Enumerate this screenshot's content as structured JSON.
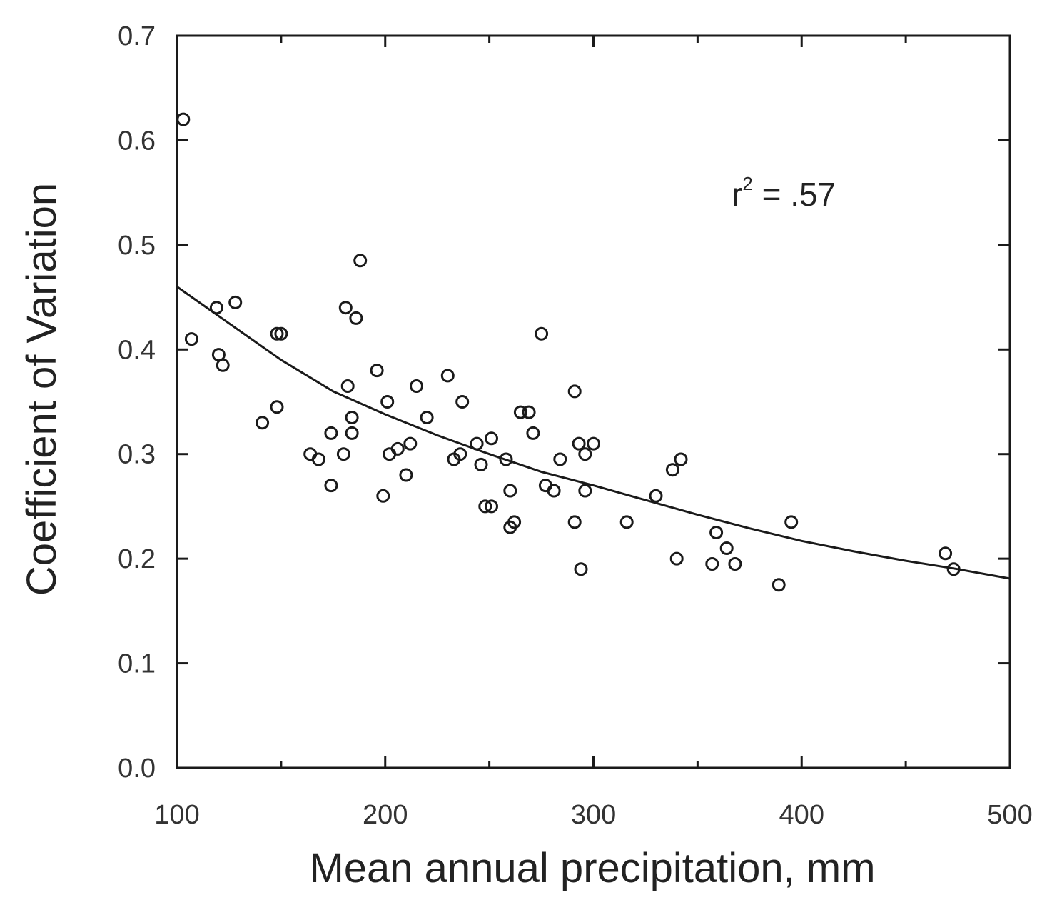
{
  "chart_data": {
    "type": "scatter",
    "title": "",
    "xlabel": "Mean annual precipitation, mm",
    "ylabel": "Coefficient of Variation",
    "xlim": [
      100,
      500
    ],
    "ylim": [
      0.0,
      0.7
    ],
    "grid": false,
    "x_ticks": [
      100,
      200,
      300,
      400,
      500
    ],
    "x_tick_labels": [
      "100",
      "200",
      "300",
      "400",
      "500"
    ],
    "y_ticks": [
      0.0,
      0.1,
      0.2,
      0.3,
      0.4,
      0.5,
      0.6,
      0.7
    ],
    "y_tick_labels": [
      "0.0",
      "0.1",
      "0.2",
      "0.3",
      "0.4",
      "0.5",
      "0.6",
      "0.7"
    ],
    "annotation": {
      "text": "r",
      "superscript": "2",
      "value": " = .57"
    },
    "fit_curve": {
      "x": [
        100,
        125,
        150,
        175,
        200,
        225,
        250,
        275,
        300,
        325,
        350,
        375,
        400,
        425,
        450,
        475,
        500
      ],
      "y": [
        0.46,
        0.425,
        0.39,
        0.36,
        0.338,
        0.318,
        0.3,
        0.283,
        0.27,
        0.256,
        0.242,
        0.229,
        0.217,
        0.207,
        0.198,
        0.19,
        0.181
      ]
    },
    "points": [
      [
        103,
        0.62
      ],
      [
        107,
        0.41
      ],
      [
        119,
        0.44
      ],
      [
        120,
        0.395
      ],
      [
        122,
        0.385
      ],
      [
        128,
        0.445
      ],
      [
        141,
        0.33
      ],
      [
        148,
        0.345
      ],
      [
        148,
        0.415
      ],
      [
        150,
        0.415
      ],
      [
        164,
        0.3
      ],
      [
        168,
        0.295
      ],
      [
        174,
        0.32
      ],
      [
        174,
        0.27
      ],
      [
        180,
        0.3
      ],
      [
        181,
        0.44
      ],
      [
        182,
        0.365
      ],
      [
        184,
        0.335
      ],
      [
        184,
        0.32
      ],
      [
        186,
        0.43
      ],
      [
        188,
        0.485
      ],
      [
        196,
        0.38
      ],
      [
        199,
        0.26
      ],
      [
        201,
        0.35
      ],
      [
        202,
        0.3
      ],
      [
        206,
        0.305
      ],
      [
        210,
        0.28
      ],
      [
        212,
        0.31
      ],
      [
        215,
        0.365
      ],
      [
        220,
        0.335
      ],
      [
        230,
        0.375
      ],
      [
        233,
        0.295
      ],
      [
        236,
        0.3
      ],
      [
        237,
        0.35
      ],
      [
        244,
        0.31
      ],
      [
        246,
        0.29
      ],
      [
        248,
        0.25
      ],
      [
        251,
        0.315
      ],
      [
        251,
        0.25
      ],
      [
        258,
        0.295
      ],
      [
        260,
        0.265
      ],
      [
        260,
        0.23
      ],
      [
        262,
        0.235
      ],
      [
        265,
        0.34
      ],
      [
        269,
        0.34
      ],
      [
        271,
        0.32
      ],
      [
        275,
        0.415
      ],
      [
        277,
        0.27
      ],
      [
        281,
        0.265
      ],
      [
        284,
        0.295
      ],
      [
        291,
        0.36
      ],
      [
        291,
        0.235
      ],
      [
        293,
        0.31
      ],
      [
        294,
        0.19
      ],
      [
        296,
        0.3
      ],
      [
        296,
        0.265
      ],
      [
        300,
        0.31
      ],
      [
        316,
        0.235
      ],
      [
        330,
        0.26
      ],
      [
        338,
        0.285
      ],
      [
        340,
        0.2
      ],
      [
        342,
        0.295
      ],
      [
        357,
        0.195
      ],
      [
        359,
        0.225
      ],
      [
        364,
        0.21
      ],
      [
        368,
        0.195
      ],
      [
        389,
        0.175
      ],
      [
        395,
        0.235
      ],
      [
        469,
        0.205
      ],
      [
        473,
        0.19
      ]
    ]
  }
}
